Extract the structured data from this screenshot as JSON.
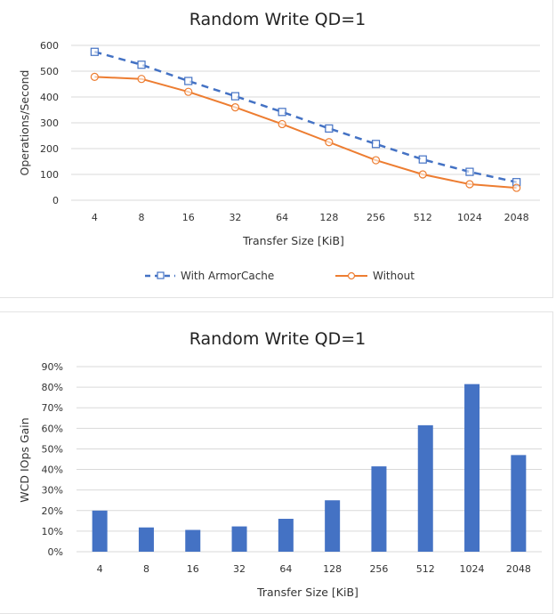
{
  "chart_data": [
    {
      "type": "line",
      "title": "Random Write  QD=1",
      "xlabel": "Transfer Size  [KiB]",
      "ylabel": "Operations/Second",
      "categories": [
        "4",
        "8",
        "16",
        "32",
        "64",
        "128",
        "256",
        "512",
        "1024",
        "2048"
      ],
      "yticks": [
        "0",
        "100",
        "200",
        "300",
        "400",
        "500",
        "600"
      ],
      "ylim": [
        0,
        600
      ],
      "grid": true,
      "legend_position": "bottom",
      "series": [
        {
          "name": "With ArmorCache",
          "color": "#4472c4",
          "style": "dashed",
          "marker": "square",
          "values": [
            575,
            525,
            462,
            403,
            342,
            278,
            218,
            158,
            110,
            70
          ]
        },
        {
          "name": "Without",
          "color": "#ed7d31",
          "style": "solid",
          "marker": "circle",
          "values": [
            478,
            470,
            420,
            360,
            295,
            225,
            155,
            100,
            62,
            48
          ]
        }
      ]
    },
    {
      "type": "bar",
      "title": "Random Write  QD=1",
      "xlabel": "Transfer Size  [KiB]",
      "ylabel": "WCD IOps Gain",
      "categories": [
        "4",
        "8",
        "16",
        "32",
        "64",
        "128",
        "256",
        "512",
        "1024",
        "2048"
      ],
      "yticks": [
        "0%",
        "10%",
        "20%",
        "30%",
        "40%",
        "50%",
        "60%",
        "70%",
        "80%",
        "90%"
      ],
      "ylim": [
        0,
        90
      ],
      "grid": true,
      "color": "#4472c4",
      "values": [
        20,
        11.8,
        10.6,
        12.3,
        16,
        25,
        41.5,
        61.5,
        81.5,
        47
      ]
    }
  ]
}
